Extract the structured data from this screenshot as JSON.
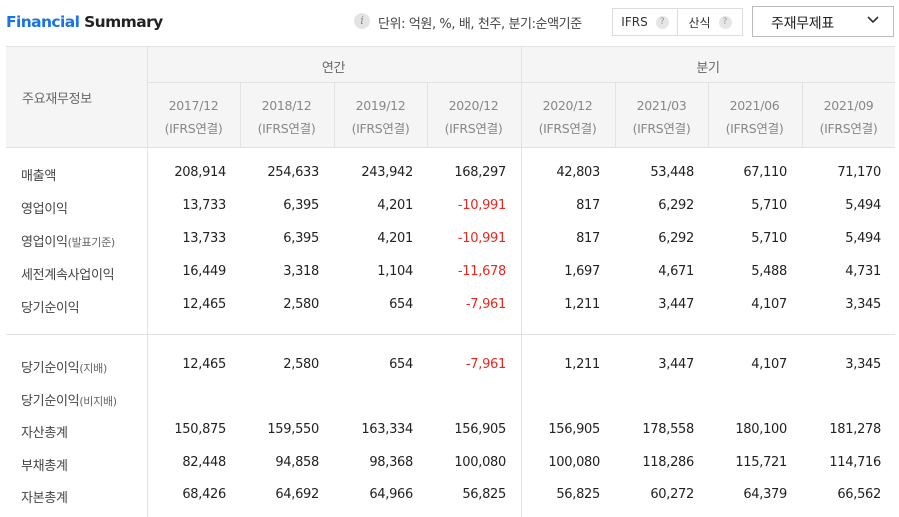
{
  "header": {
    "title_part1": "Financial",
    "title_part2": "Summary",
    "unit_text": "단위: 억원, %, 배, 천주, 분기:순액기준",
    "standards": [
      {
        "label": "IFRS"
      },
      {
        "label": "산식"
      }
    ],
    "help_glyph": "?",
    "info_glyph": "i",
    "dropdown_label": "주재무제표"
  },
  "table": {
    "corner_label": "주요재무정보",
    "groups": {
      "annual": "연간",
      "quarterly": "분기"
    },
    "columns": [
      {
        "period": "2017/12",
        "basis": "(IFRS연결)"
      },
      {
        "period": "2018/12",
        "basis": "(IFRS연결)"
      },
      {
        "period": "2019/12",
        "basis": "(IFRS연결)"
      },
      {
        "period": "2020/12",
        "basis": "(IFRS연결)"
      },
      {
        "period": "2020/12",
        "basis": "(IFRS연결)"
      },
      {
        "period": "2021/03",
        "basis": "(IFRS연결)"
      },
      {
        "period": "2021/06",
        "basis": "(IFRS연결)"
      },
      {
        "period": "2021/09",
        "basis": "(IFRS연결)"
      }
    ],
    "rows": [
      {
        "label": "매출액",
        "sub": "",
        "values": [
          "208,914",
          "254,633",
          "243,942",
          "168,297",
          "42,803",
          "53,448",
          "67,110",
          "71,170"
        ]
      },
      {
        "label": "영업이익",
        "sub": "",
        "values": [
          "13,733",
          "6,395",
          "4,201",
          "-10,991",
          "817",
          "6,292",
          "5,710",
          "5,494"
        ]
      },
      {
        "label": "영업이익",
        "sub": "(발표기준)",
        "values": [
          "13,733",
          "6,395",
          "4,201",
          "-10,991",
          "817",
          "6,292",
          "5,710",
          "5,494"
        ]
      },
      {
        "label": "세전계속사업이익",
        "sub": "",
        "values": [
          "16,449",
          "3,318",
          "1,104",
          "-11,678",
          "1,697",
          "4,671",
          "5,488",
          "4,731"
        ]
      },
      {
        "label": "당기순이익",
        "sub": "",
        "values": [
          "12,465",
          "2,580",
          "654",
          "-7,961",
          "1,211",
          "3,447",
          "4,107",
          "3,345"
        ]
      },
      {
        "label": "당기순이익",
        "sub": "(지배)",
        "values": [
          "12,465",
          "2,580",
          "654",
          "-7,961",
          "1,211",
          "3,447",
          "4,107",
          "3,345"
        ]
      },
      {
        "label": "당기순이익",
        "sub": "(비지배)",
        "values": [
          "",
          "",
          "",
          "",
          "",
          "",
          "",
          ""
        ]
      },
      {
        "label": "자산총계",
        "sub": "",
        "values": [
          "150,875",
          "159,550",
          "163,334",
          "156,905",
          "156,905",
          "178,558",
          "180,100",
          "181,278"
        ]
      },
      {
        "label": "부채총계",
        "sub": "",
        "values": [
          "82,448",
          "94,858",
          "98,368",
          "100,080",
          "100,080",
          "118,286",
          "115,721",
          "114,716"
        ]
      },
      {
        "label": "자본총계",
        "sub": "",
        "values": [
          "68,426",
          "64,692",
          "64,966",
          "56,825",
          "56,825",
          "60,272",
          "64,379",
          "66,562"
        ]
      }
    ]
  },
  "colors": {
    "accent": "#1a73e8",
    "negative": "#e8281e",
    "header_bg": "#f5f5f5",
    "border": "#e2e2e2"
  }
}
